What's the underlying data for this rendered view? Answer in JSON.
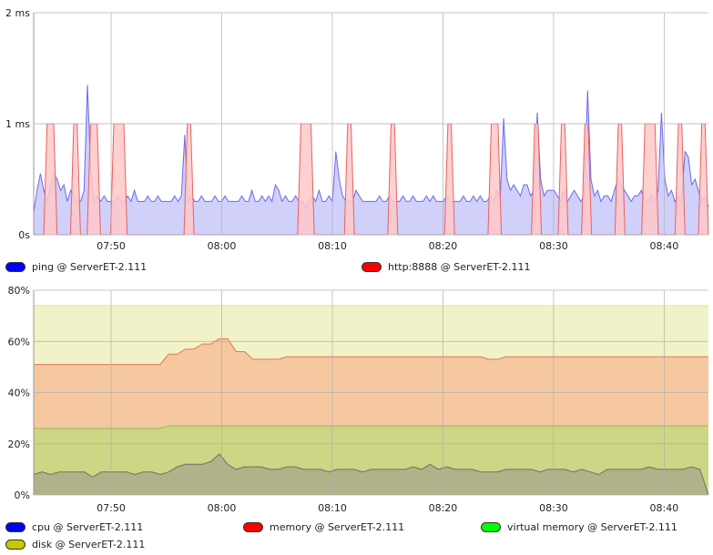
{
  "chart_data": [
    {
      "type": "area",
      "ylabel_ticks": [
        "0s",
        "1 ms",
        "2 ms"
      ],
      "ylim": [
        0,
        2
      ],
      "x_ticks": [
        "07:50",
        "08:00",
        "08:10",
        "08:20",
        "08:30",
        "08:40"
      ],
      "xlim": [
        "07:43",
        "08:44"
      ],
      "grid": true,
      "legend_position": "bottom",
      "series": [
        {
          "name": "ping @ ServerET-2.111",
          "fill": "#c8c8fa",
          "stroke": "#6a6af0",
          "swatch": "#0000ff",
          "values": [
            0.2,
            0.4,
            0.55,
            0.4,
            0.3,
            0.45,
            0.55,
            0.5,
            0.4,
            0.45,
            0.3,
            0.4,
            0.35,
            0.3,
            0.3,
            0.4,
            1.35,
            0.6,
            0.3,
            0.35,
            0.3,
            0.35,
            0.3,
            0.3,
            0.3,
            0.35,
            0.3,
            0.3,
            0.35,
            0.3,
            0.4,
            0.3,
            0.3,
            0.3,
            0.35,
            0.3,
            0.3,
            0.35,
            0.3,
            0.3,
            0.3,
            0.3,
            0.35,
            0.3,
            0.35,
            0.9,
            0.3,
            0.35,
            0.3,
            0.3,
            0.35,
            0.3,
            0.3,
            0.3,
            0.35,
            0.3,
            0.3,
            0.35,
            0.3,
            0.3,
            0.3,
            0.3,
            0.35,
            0.3,
            0.3,
            0.4,
            0.3,
            0.3,
            0.35,
            0.3,
            0.35,
            0.3,
            0.45,
            0.4,
            0.3,
            0.35,
            0.3,
            0.3,
            0.35,
            0.3,
            0.3,
            0.25,
            0.3,
            0.35,
            0.3,
            0.4,
            0.3,
            0.3,
            0.35,
            0.3,
            0.75,
            0.5,
            0.35,
            0.3,
            0.3,
            0.3,
            0.4,
            0.35,
            0.3,
            0.3,
            0.3,
            0.3,
            0.3,
            0.35,
            0.3,
            0.3,
            0.35,
            0.3,
            0.3,
            0.3,
            0.35,
            0.3,
            0.3,
            0.35,
            0.3,
            0.3,
            0.3,
            0.35,
            0.3,
            0.35,
            0.3,
            0.3,
            0.3,
            0.35,
            0.3,
            0.3,
            0.3,
            0.3,
            0.35,
            0.3,
            0.3,
            0.35,
            0.3,
            0.35,
            0.3,
            0.3,
            0.35,
            0.3,
            0.4,
            0.35,
            1.05,
            0.5,
            0.4,
            0.45,
            0.4,
            0.35,
            0.45,
            0.45,
            0.35,
            0.4,
            1.1,
            0.5,
            0.35,
            0.4,
            0.4,
            0.4,
            0.35,
            0.3,
            0.4,
            0.3,
            0.35,
            0.4,
            0.35,
            0.3,
            0.35,
            1.3,
            0.5,
            0.35,
            0.4,
            0.3,
            0.35,
            0.35,
            0.3,
            0.4,
            0.5,
            0.45,
            0.4,
            0.35,
            0.3,
            0.35,
            0.35,
            0.4,
            0.3,
            0.3,
            0.35,
            0.3,
            0.4,
            1.1,
            0.5,
            0.35,
            0.4,
            0.3,
            0.35,
            0.3,
            0.75,
            0.7,
            0.45,
            0.5,
            0.4,
            0.3,
            0.35,
            0.25
          ]
        },
        {
          "name": "http:8888 @ ServerET-2.111",
          "fill": "#ffc8c8",
          "stroke": "#e86060",
          "swatch": "#ff0000",
          "values": [
            0,
            0,
            0,
            0,
            1,
            1,
            1,
            0,
            0,
            0,
            0,
            0,
            1,
            1,
            0,
            0,
            0,
            1,
            1,
            1,
            0,
            0,
            0,
            0,
            1,
            1,
            1,
            1,
            0,
            0,
            0,
            0,
            0,
            0,
            0,
            0,
            0,
            0,
            0,
            0,
            0,
            0,
            0,
            0,
            0,
            0,
            1,
            1,
            0,
            0,
            0,
            0,
            0,
            0,
            0,
            0,
            0,
            0,
            0,
            0,
            0,
            0,
            0,
            0,
            0,
            0,
            0,
            0,
            0,
            0,
            0,
            0,
            0,
            0,
            0,
            0,
            0,
            0,
            0,
            0,
            1,
            1,
            1,
            1,
            0,
            0,
            0,
            0,
            0,
            0,
            0,
            0,
            0,
            0,
            1,
            1,
            0,
            0,
            0,
            0,
            0,
            0,
            0,
            0,
            0,
            0,
            0,
            1,
            1,
            0,
            0,
            0,
            0,
            0,
            0,
            0,
            0,
            0,
            0,
            0,
            0,
            0,
            0,
            0,
            1,
            1,
            0,
            0,
            0,
            0,
            0,
            0,
            0,
            0,
            0,
            0,
            0,
            1,
            1,
            1,
            0,
            0,
            0,
            0,
            0,
            0,
            0,
            0,
            0,
            0,
            1,
            1,
            0,
            0,
            0,
            0,
            0,
            0,
            1,
            1,
            0,
            0,
            0,
            0,
            0,
            1,
            1,
            0,
            0,
            0,
            0,
            0,
            0,
            0,
            0,
            1,
            1,
            0,
            0,
            0,
            0,
            0,
            0,
            1,
            1,
            1,
            1,
            0,
            0,
            0,
            0,
            0,
            0,
            1,
            1,
            0,
            0,
            0,
            0,
            0,
            1,
            1,
            0
          ]
        }
      ]
    },
    {
      "type": "area",
      "ylabel_ticks": [
        "0%",
        "20%",
        "40%",
        "60%",
        "80%"
      ],
      "ylim": [
        0,
        80
      ],
      "x_ticks": [
        "07:50",
        "08:00",
        "08:10",
        "08:20",
        "08:30",
        "08:40"
      ],
      "xlim": [
        "07:43",
        "08:44"
      ],
      "grid": true,
      "legend_position": "bottom",
      "series": [
        {
          "name": "cpu @ ServerET-2.111",
          "fill": "#b0b28a",
          "stroke": "#707060",
          "swatch": "#0000ff",
          "values": [
            8,
            9,
            8,
            9,
            9,
            9,
            9,
            7,
            9,
            9,
            9,
            9,
            8,
            9,
            9,
            8,
            9,
            11,
            12,
            12,
            12,
            13,
            16,
            12,
            10,
            11,
            11,
            11,
            10,
            10,
            11,
            11,
            10,
            10,
            10,
            9,
            10,
            10,
            10,
            9,
            10,
            10,
            10,
            10,
            10,
            11,
            10,
            12,
            10,
            11,
            10,
            10,
            10,
            9,
            9,
            9,
            10,
            10,
            10,
            10,
            9,
            10,
            10,
            10,
            9,
            10,
            9,
            8,
            10,
            10,
            10,
            10,
            10,
            11,
            10,
            10,
            10,
            10,
            11,
            10,
            0
          ]
        },
        {
          "name": "memory @ ServerET-2.111",
          "fill": "#f5c8a0",
          "stroke": "#e07850",
          "swatch": "#ff0000",
          "values": [
            51,
            51,
            51,
            51,
            51,
            51,
            51,
            51,
            51,
            51,
            51,
            51,
            51,
            51,
            51,
            51,
            55,
            55,
            57,
            57,
            59,
            59,
            61,
            61,
            56,
            56,
            53,
            53,
            53,
            53,
            54,
            54,
            54,
            54,
            54,
            54,
            54,
            54,
            54,
            54,
            54,
            54,
            54,
            54,
            54,
            54,
            54,
            54,
            54,
            54,
            54,
            54,
            54,
            54,
            53,
            53,
            54,
            54,
            54,
            54,
            54,
            54,
            54,
            54,
            54,
            54,
            54,
            54,
            54,
            54,
            54,
            54,
            54,
            54,
            54,
            54,
            54,
            54,
            54,
            54,
            54
          ]
        },
        {
          "name": "virtual memory @ ServerET-2.111",
          "fill": "#f2f2c8",
          "stroke": "#e0e0a0",
          "swatch": "#00ff00",
          "values": [
            74,
            74,
            74,
            74,
            74,
            74,
            74,
            74,
            74,
            74,
            74,
            74,
            74,
            74,
            74,
            74,
            74,
            74,
            74,
            74,
            74,
            74,
            74,
            74,
            74,
            74,
            74,
            74,
            74,
            74,
            74,
            74,
            74,
            74,
            74,
            74,
            74,
            74,
            74,
            74,
            74,
            74,
            74,
            74,
            74,
            74,
            74,
            74,
            74,
            74,
            74,
            74,
            74,
            74,
            74,
            74,
            74,
            74,
            74,
            74,
            74,
            74,
            74,
            74,
            74,
            74,
            74,
            74,
            74,
            74,
            74,
            74,
            74,
            74,
            74,
            74,
            74,
            74,
            74,
            74,
            74
          ]
        },
        {
          "name": "disk @ ServerET-2.111",
          "fill": "#ccd684",
          "stroke": "#a8b060",
          "swatch": "#c8c800",
          "values": [
            26,
            26,
            26,
            26,
            26,
            26,
            26,
            26,
            26,
            26,
            26,
            26,
            26,
            26,
            26,
            26,
            27,
            27,
            27,
            27,
            27,
            27,
            27,
            27,
            27,
            27,
            27,
            27,
            27,
            27,
            27,
            27,
            27,
            27,
            27,
            27,
            27,
            27,
            27,
            27,
            27,
            27,
            27,
            27,
            27,
            27,
            27,
            27,
            27,
            27,
            27,
            27,
            27,
            27,
            27,
            27,
            27,
            27,
            27,
            27,
            27,
            27,
            27,
            27,
            27,
            27,
            27,
            27,
            27,
            27,
            27,
            27,
            27,
            27,
            27,
            27,
            27,
            27,
            27,
            27,
            27
          ]
        }
      ]
    }
  ]
}
